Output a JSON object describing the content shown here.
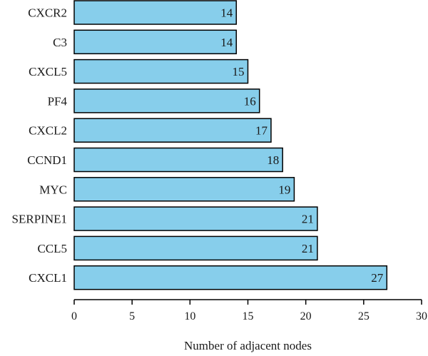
{
  "chart_data": {
    "type": "bar",
    "orientation": "horizontal",
    "categories": [
      "CXCR2",
      "C3",
      "CXCL5",
      "PF4",
      "CXCL2",
      "CCND1",
      "MYC",
      "SERPINE1",
      "CCL5",
      "CXCL1"
    ],
    "values": [
      14,
      14,
      15,
      16,
      17,
      18,
      19,
      21,
      21,
      27
    ],
    "data_labels": [
      "14",
      "14",
      "15",
      "16",
      "17",
      "18",
      "19",
      "21",
      "21",
      "27"
    ],
    "xlabel": "Number of adjacent nodes",
    "ylabel": "",
    "title": "",
    "xlim": [
      0,
      30
    ],
    "xticks": [
      0,
      5,
      10,
      15,
      20,
      25,
      30
    ],
    "xtick_labels": [
      "0",
      "5",
      "10",
      "15",
      "20",
      "25",
      "30"
    ],
    "grid": false,
    "bar_color": "#87ceeb",
    "bar_edge_color": "#000000"
  }
}
